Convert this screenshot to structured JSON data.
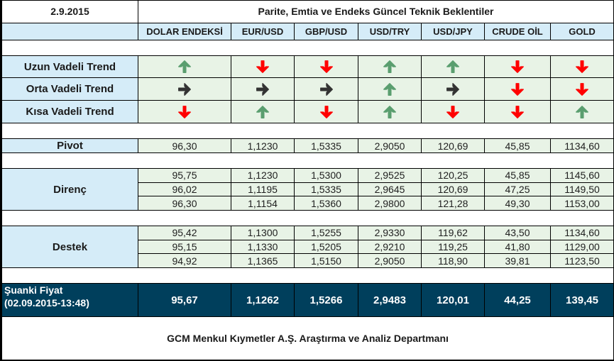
{
  "header": {
    "date": "2.9.2015",
    "title": "Parite, Emtia ve Endeks Güncel Teknik Beklentiler"
  },
  "columns": [
    "DOLAR ENDEKSİ",
    "EUR/USD",
    "GBP/USD",
    "USD/TRY",
    "USD/JPY",
    "CRUDE OİL",
    "GOLD"
  ],
  "colors": {
    "label_bg": "#d5ecf8",
    "value_bg": "#e8f3e6",
    "current_bg": "#003f5c",
    "arrow_up": "#5a9e6f",
    "arrow_down": "#ff0000",
    "arrow_right": "#333333"
  },
  "trends": [
    {
      "label": "Uzun Vadeli Trend",
      "directions": [
        "up",
        "down",
        "down",
        "up",
        "up",
        "down",
        "down"
      ]
    },
    {
      "label": "Orta Vadeli Trend",
      "directions": [
        "right",
        "right",
        "right",
        "up",
        "right",
        "down",
        "down"
      ]
    },
    {
      "label": "Kısa Vadeli Trend",
      "directions": [
        "down",
        "up",
        "down",
        "up",
        "down",
        "down",
        "up"
      ]
    }
  ],
  "pivot": {
    "label": "Pivot",
    "values": [
      "96,30",
      "1,1230",
      "1,5335",
      "2,9050",
      "120,69",
      "45,85",
      "1134,60"
    ]
  },
  "direnc": {
    "label": "Direnç",
    "rows": [
      [
        "95,75",
        "1,1230",
        "1,5300",
        "2,9525",
        "120,25",
        "45,85",
        "1145,60"
      ],
      [
        "96,02",
        "1,1195",
        "1,5335",
        "2,9645",
        "120,69",
        "47,25",
        "1149,50"
      ],
      [
        "96,30",
        "1,1154",
        "1,5360",
        "2,9800",
        "121,28",
        "49,30",
        "1153,00"
      ]
    ]
  },
  "destek": {
    "label": "Destek",
    "rows": [
      [
        "95,42",
        "1,1300",
        "1,5255",
        "2,9330",
        "119,62",
        "43,50",
        "1134,60"
      ],
      [
        "95,15",
        "1,1330",
        "1,5205",
        "2,9210",
        "119,25",
        "41,80",
        "1129,00"
      ],
      [
        "94,92",
        "1,1365",
        "1,5150",
        "2,9050",
        "118,90",
        "39,81",
        "1123,50"
      ]
    ]
  },
  "current": {
    "label": "Şuanki Fiyat",
    "timestamp": "(02.09.2015-13:48)",
    "values": [
      "95,67",
      "1,1262",
      "1,5266",
      "2,9483",
      "120,01",
      "44,25",
      "139,45"
    ]
  },
  "footer": {
    "text": "GCM Menkul Kıymetler A.Ş. Araştırma ve Analiz Departmanı"
  }
}
